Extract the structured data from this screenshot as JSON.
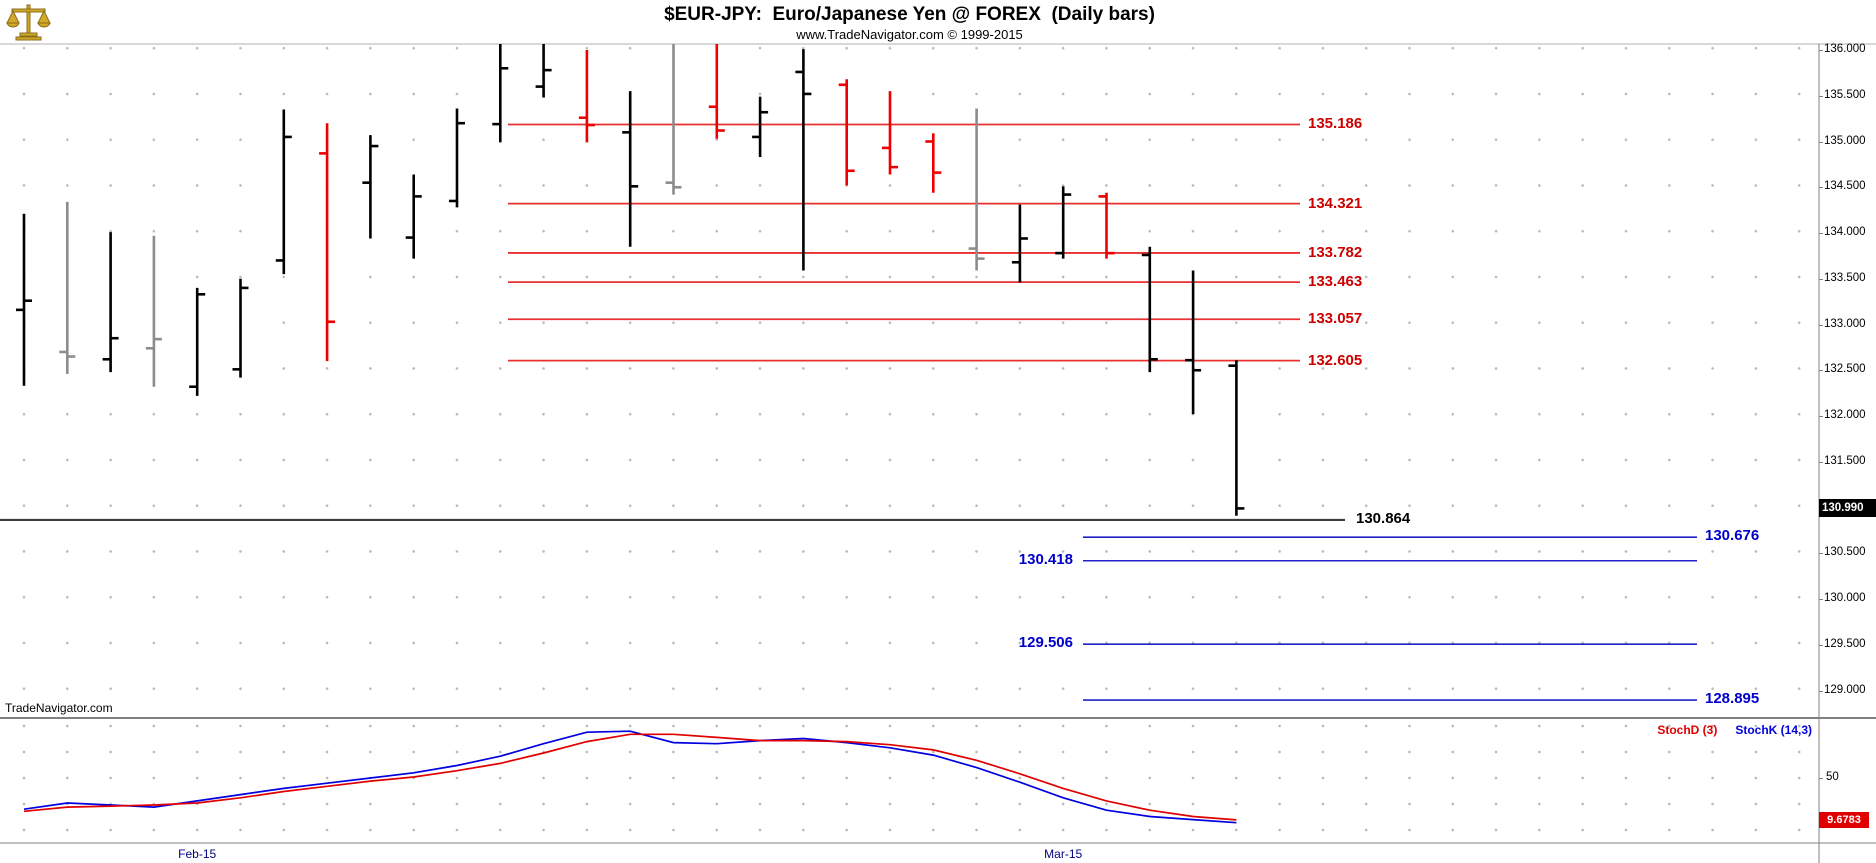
{
  "header": {
    "title": "$EUR-JPY:  Euro/Japanese Yen @ FOREX  (Daily bars)",
    "subtitle": "www.TradeNavigator.com © 1999-2015"
  },
  "watermark": "TradeNavigator.com",
  "colors": {
    "bar_black": "#000000",
    "bar_red": "#ee0000",
    "bar_gray": "#8c8c8c",
    "red_line": "#e83030",
    "red_label": "#cc0000",
    "blue_line": "#2222c8",
    "blue_label": "#0000cc",
    "black_line": "#3c3c3c",
    "stoch_d": "#e00000",
    "stoch_k": "#0000e0",
    "axis_text": "#000000",
    "date_text": "#000080",
    "current_price_bg": "#000000",
    "current_price_fg": "#ffffff",
    "last_value_bg": "#e00000",
    "last_value_fg": "#ffffff",
    "logo_gold": "#d1a827"
  },
  "price_axis": {
    "tick_labels": [
      "136.000",
      "135.500",
      "135.000",
      "134.500",
      "134.000",
      "133.500",
      "133.000",
      "132.500",
      "132.000",
      "131.500",
      "131.000",
      "130.500",
      "130.000",
      "129.500",
      "129.000"
    ],
    "current_price": "130.990"
  },
  "x_axis": {
    "labels": [
      {
        "text": "Feb-15",
        "bar_index": 4
      },
      {
        "text": "Mar-15",
        "bar_index": 24
      }
    ]
  },
  "chart_data": {
    "type": "bar",
    "subtype": "ohlc-daily-bars",
    "title": "$EUR-JPY: Euro/Japanese Yen @ FOREX (Daily bars)",
    "price_range": [
      129.0,
      136.0
    ],
    "tick_step": 0.5,
    "bars": [
      {
        "o": 133.16,
        "h": 134.21,
        "l": 132.33,
        "c": 133.26,
        "color": "black"
      },
      {
        "o": 132.7,
        "h": 134.34,
        "l": 132.46,
        "c": 132.65,
        "color": "gray"
      },
      {
        "o": 132.62,
        "h": 134.01,
        "l": 132.48,
        "c": 132.85,
        "color": "black"
      },
      {
        "o": 132.74,
        "h": 133.97,
        "l": 132.32,
        "c": 132.84,
        "color": "gray"
      },
      {
        "o": 132.32,
        "h": 133.4,
        "l": 132.22,
        "c": 133.33,
        "color": "black"
      },
      {
        "o": 132.51,
        "h": 133.5,
        "l": 132.42,
        "c": 133.4,
        "color": "black"
      },
      {
        "o": 133.7,
        "h": 135.35,
        "l": 133.55,
        "c": 135.05,
        "color": "black"
      },
      {
        "o": 134.87,
        "h": 135.2,
        "l": 132.6,
        "c": 133.03,
        "color": "red"
      },
      {
        "o": 134.55,
        "h": 135.07,
        "l": 133.94,
        "c": 134.95,
        "color": "black"
      },
      {
        "o": 133.95,
        "h": 134.64,
        "l": 133.72,
        "c": 134.4,
        "color": "black"
      },
      {
        "o": 134.35,
        "h": 135.36,
        "l": 134.28,
        "c": 135.2,
        "color": "black"
      },
      {
        "o": 135.19,
        "h": 136.1,
        "l": 134.99,
        "c": 135.8,
        "color": "black"
      },
      {
        "o": 135.6,
        "h": 136.12,
        "l": 135.48,
        "c": 135.78,
        "color": "black"
      },
      {
        "o": 135.26,
        "h": 136.0,
        "l": 134.99,
        "c": 135.18,
        "color": "red"
      },
      {
        "o": 135.1,
        "h": 135.55,
        "l": 133.85,
        "c": 134.51,
        "color": "black"
      },
      {
        "o": 134.55,
        "h": 136.1,
        "l": 134.42,
        "c": 134.5,
        "color": "gray"
      },
      {
        "o": 135.38,
        "h": 136.08,
        "l": 135.03,
        "c": 135.12,
        "color": "red"
      },
      {
        "o": 135.05,
        "h": 135.49,
        "l": 134.83,
        "c": 135.32,
        "color": "black"
      },
      {
        "o": 135.76,
        "h": 136.01,
        "l": 133.59,
        "c": 135.52,
        "color": "black"
      },
      {
        "o": 135.62,
        "h": 135.68,
        "l": 134.52,
        "c": 134.68,
        "color": "red"
      },
      {
        "o": 134.93,
        "h": 135.55,
        "l": 134.64,
        "c": 134.72,
        "color": "red"
      },
      {
        "o": 135.0,
        "h": 135.09,
        "l": 134.44,
        "c": 134.66,
        "color": "red"
      },
      {
        "o": 133.83,
        "h": 135.36,
        "l": 133.59,
        "c": 133.72,
        "color": "gray"
      },
      {
        "o": 133.68,
        "h": 134.31,
        "l": 133.46,
        "c": 133.94,
        "color": "black"
      },
      {
        "o": 133.78,
        "h": 134.51,
        "l": 133.72,
        "c": 134.42,
        "color": "black"
      },
      {
        "o": 134.4,
        "h": 134.44,
        "l": 133.72,
        "c": 133.78,
        "color": "red"
      },
      {
        "o": 133.76,
        "h": 133.85,
        "l": 132.48,
        "c": 132.62,
        "color": "black"
      },
      {
        "o": 132.61,
        "h": 133.59,
        "l": 132.02,
        "c": 132.5,
        "color": "black"
      },
      {
        "o": 132.55,
        "h": 132.61,
        "l": 130.91,
        "c": 130.99,
        "color": "black"
      }
    ],
    "overlay_lines": {
      "red_resistance": [
        {
          "price": 135.186,
          "label": "135.186"
        },
        {
          "price": 134.321,
          "label": "134.321"
        },
        {
          "price": 133.782,
          "label": "133.782"
        },
        {
          "price": 133.463,
          "label": "133.463"
        },
        {
          "price": 133.057,
          "label": "133.057"
        },
        {
          "price": 132.605,
          "label": "132.605"
        }
      ],
      "black_support": {
        "price": 130.864,
        "label": "130.864"
      },
      "blue_projection": [
        {
          "price": 130.676,
          "label": "130.676",
          "label_side": "right"
        },
        {
          "price": 130.418,
          "label": "130.418",
          "label_side": "left"
        },
        {
          "price": 129.506,
          "label": "129.506",
          "label_side": "left"
        },
        {
          "price": 128.895,
          "label": "128.895",
          "label_side": "right"
        }
      ]
    },
    "indicator": {
      "stoch_d_label": "StochD (3)",
      "stoch_k_label": "StochK (14,3)",
      "mid_label": "50",
      "last_value": "9.6783",
      "stoch_k": [
        20,
        26,
        24,
        22,
        28,
        34,
        40,
        45,
        50,
        55,
        62,
        71,
        83,
        94,
        95,
        84,
        83,
        86,
        88,
        84,
        79,
        72,
        60,
        46,
        31,
        19,
        13,
        10,
        7
      ],
      "stoch_d": [
        18,
        22,
        23,
        24,
        26,
        31,
        37,
        42,
        47,
        51,
        57,
        64,
        74,
        85,
        92,
        92,
        89,
        86,
        86,
        85,
        82,
        77,
        67,
        54,
        40,
        28,
        19,
        13,
        9.7
      ]
    }
  }
}
